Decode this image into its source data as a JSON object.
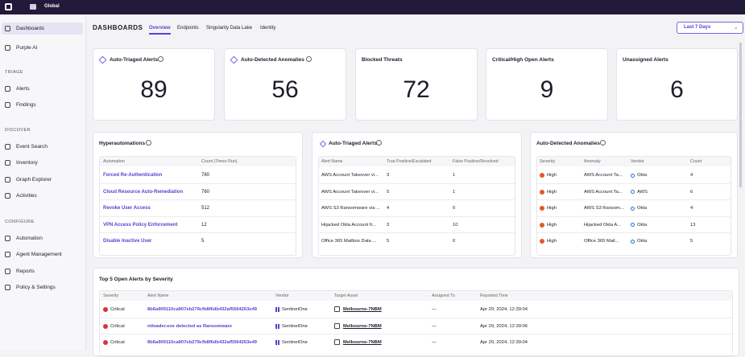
{
  "topbar": {
    "scope": "Global"
  },
  "sidebar": {
    "items": [
      "Dashboards",
      "Purple AI"
    ],
    "sections": [
      {
        "title": "TRIAGE",
        "items": [
          "Alerts",
          "Findings"
        ]
      },
      {
        "title": "DISCOVER",
        "items": [
          "Event Search",
          "Inventory",
          "Graph Explorer",
          "Activities"
        ]
      },
      {
        "title": "CONFIGURE",
        "items": [
          "Automation",
          "Agent Management",
          "Reports",
          "Policy & Settings"
        ]
      }
    ]
  },
  "header": {
    "title": "DASHBOARDS",
    "tabs": [
      "Overview",
      "Endpoints",
      "Singularity Data Lake",
      "Identity"
    ],
    "range": "Last 7 Days"
  },
  "kpis": [
    {
      "title": "Auto-Triaged Alerts",
      "value": 89
    },
    {
      "title": "Auto-Detected Anomalies",
      "value": 56
    },
    {
      "title": "Blocked Threats",
      "value": 72
    },
    {
      "title": "Critical/High Open Alerts",
      "value": 9
    },
    {
      "title": "Unassigned Alerts",
      "value": 6
    }
  ],
  "hyperautomations": {
    "title": "Hyperautomations",
    "columns": [
      "Automation",
      "Count (Times Run)"
    ],
    "rows": [
      [
        "Forced Re-Authentication",
        780
      ],
      [
        "Cloud Resource Auto-Remediation",
        760
      ],
      [
        "Revoke User Access",
        512
      ],
      [
        "VPN Access Policy Enforcement",
        12
      ],
      [
        "Disable Inactive User",
        5
      ]
    ]
  },
  "auto_triaged": {
    "title": "Auto-Triaged Alerts",
    "columns": [
      "Alert Name",
      "True Positive/Escalated",
      "False Positive/Resolved"
    ],
    "rows": [
      [
        "AWS Account Takeover vi...",
        3,
        1
      ],
      [
        "AWS Account Takeover vi...",
        5,
        1
      ],
      [
        "AWS S3 Ransomware via ...",
        4,
        0
      ],
      [
        "Hijacked Okta Account fr...",
        3,
        10
      ],
      [
        "Office 365 Mailbox Data ...",
        5,
        0
      ]
    ]
  },
  "anomalies": {
    "title": "Auto-Detected Anomalies",
    "columns": [
      "Severity",
      "Anomaly",
      "Vendor",
      "Count"
    ],
    "rows": [
      [
        "High",
        "AWS Account Ta...",
        "Okta",
        4
      ],
      [
        "High",
        "AWS Account Ta...",
        "AWS",
        6
      ],
      [
        "High",
        "AWS S3 Ransom...",
        "Okta",
        4
      ],
      [
        "High",
        "Hijacked Okta A...",
        "Okta",
        13
      ],
      [
        "High",
        "Office 365 Mail...",
        "Okta",
        5
      ]
    ]
  },
  "top5": {
    "title": "Top 5 Open Alerts by Severity",
    "columns": [
      "Severity",
      "Alert Name",
      "Vendor",
      "Target Asset",
      "Assigned To",
      "Reported Time"
    ],
    "rows": [
      [
        "Critical",
        "8b6a909110ca907eb279cfb8f6db432af5564263e49",
        "SentinelOne",
        "Melbourne-7NBM",
        "—",
        "Apr 29, 2024, 12:39:04"
      ],
      [
        "Critical",
        "ntloader.exe detected as Ransomware",
        "SentinelOne",
        "Melbourne-7NBM",
        "—",
        "Apr 29, 2024, 12:39:06"
      ],
      [
        "Critical",
        "8b6a909110ca907eb279cfb8f6db432af5564263e49",
        "SentinelOne",
        "Melbourne-7NBM",
        "—",
        "Apr 29, 2024, 12:39:04"
      ]
    ]
  }
}
